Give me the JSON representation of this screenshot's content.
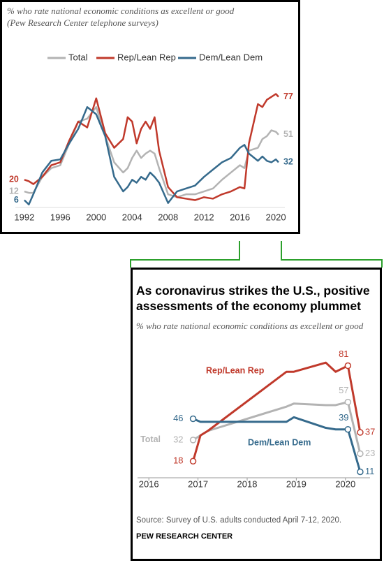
{
  "chart_data": [
    {
      "type": "line",
      "subtitle": "% who rate national economic conditions as excellent or good",
      "note": "(Pew Research Center telephone surveys)",
      "legend": "top",
      "x": [
        1992,
        1992.5,
        1993,
        1994,
        1995,
        1996,
        1997,
        1998,
        1999,
        2000,
        2001,
        2002,
        2003,
        2003.5,
        2004,
        2004.5,
        2005,
        2005.5,
        2006,
        2006.5,
        2007,
        2008,
        2009,
        2010,
        2011,
        2012,
        2013,
        2014,
        2015,
        2016,
        2016.5,
        2017,
        2018,
        2018.5,
        2019,
        2019.5,
        2020,
        2020.3
      ],
      "xlim": [
        1991,
        2021
      ],
      "xticks": [
        1992,
        1996,
        2000,
        2004,
        2008,
        2012,
        2016,
        2020
      ],
      "ylim": [
        0,
        85
      ],
      "series": [
        {
          "name": "Total",
          "color": "#b3b3b3",
          "values": [
            12,
            11,
            11,
            22,
            28,
            30,
            45,
            60,
            62,
            70,
            50,
            32,
            25,
            28,
            35,
            40,
            35,
            38,
            40,
            38,
            28,
            10,
            8,
            10,
            10,
            12,
            14,
            20,
            25,
            30,
            28,
            40,
            42,
            48,
            50,
            54,
            53,
            51
          ]
        },
        {
          "name": "Rep/Lean Rep",
          "color": "#c0392b",
          "values": [
            20,
            19,
            17,
            22,
            30,
            32,
            47,
            60,
            56,
            76,
            52,
            42,
            48,
            63,
            60,
            45,
            55,
            60,
            55,
            63,
            40,
            15,
            8,
            7,
            6,
            8,
            7,
            10,
            12,
            15,
            14,
            45,
            72,
            70,
            75,
            77,
            79,
            77
          ]
        },
        {
          "name": "Dem/Lean Dem",
          "color": "#356a8c",
          "values": [
            6,
            3,
            10,
            25,
            33,
            34,
            45,
            55,
            70,
            65,
            50,
            22,
            12,
            15,
            20,
            18,
            22,
            20,
            25,
            22,
            18,
            4,
            12,
            14,
            16,
            22,
            27,
            32,
            35,
            42,
            44,
            38,
            33,
            36,
            33,
            32,
            34,
            32
          ]
        }
      ]
    },
    {
      "type": "line",
      "title": "As coronavirus strikes the U.S., positive assessments of the economy plummet",
      "subtitle": "% who rate national economic conditions as excellent or good",
      "source": "Source: Survey of U.S. adults conducted April 7-12, 2020.",
      "footer": "PEW RESEARCH CENTER",
      "x": [
        2016.9,
        2017.05,
        2017.2,
        2018.8,
        2018.95,
        2019.6,
        2019.8,
        2020.05,
        2020.3
      ],
      "xlim": [
        2015.77,
        2020.5
      ],
      "xticks": [
        2016,
        2017,
        2018,
        2019,
        2020
      ],
      "ylim": [
        8,
        90
      ],
      "series": [
        {
          "name": "Total",
          "color": "#b3b3b3",
          "values": [
            32,
            35,
            38,
            54,
            56,
            55,
            55,
            57,
            23
          ]
        },
        {
          "name": "Rep/Lean Rep",
          "color": "#c0392b",
          "values": [
            18,
            35,
            38,
            77,
            77,
            83,
            77,
            81,
            37
          ]
        },
        {
          "name": "Dem/Lean Dem",
          "color": "#356a8c",
          "values": [
            46,
            44,
            44,
            44,
            47,
            40,
            39,
            39,
            11
          ]
        }
      ]
    }
  ]
}
